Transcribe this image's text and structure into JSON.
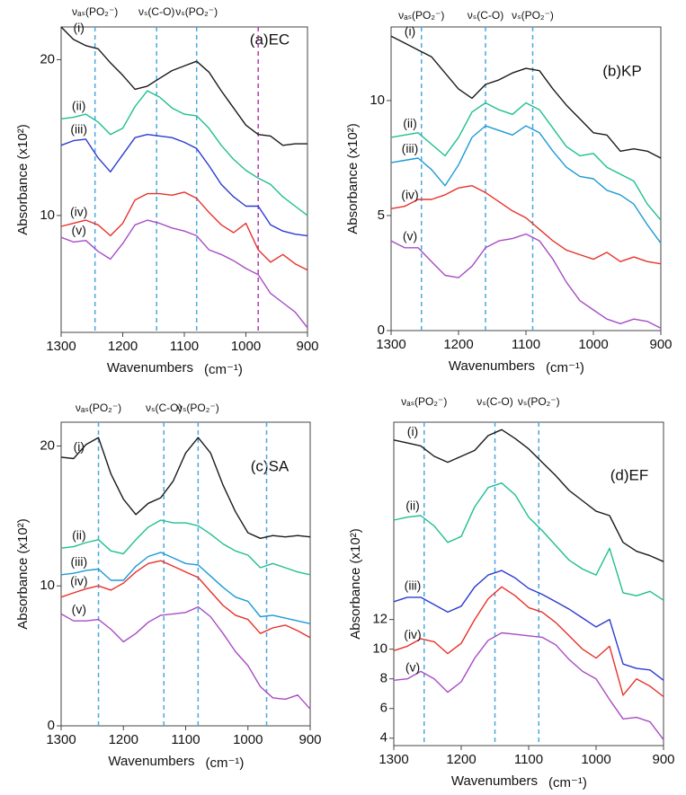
{
  "chart_data": [
    {
      "type": "line",
      "title": "(a)EC",
      "xlabel": "Wavenumbers",
      "xlabel_unit": "(cm⁻¹)",
      "ylabel": "Absorbance (x10²)",
      "xlim": [
        1300,
        900
      ],
      "xticks": [
        1300,
        1200,
        1100,
        1000,
        900
      ],
      "ylim": [
        2.5,
        22.1
      ],
      "yticks": [
        10,
        20
      ],
      "vlines": [
        {
          "x": 1245,
          "color": "#4aa8e0",
          "label": "νₐₛ(PO₂⁻)"
        },
        {
          "x": 1145,
          "color": "#4aa8e0",
          "label": "νₛ(C-O)"
        },
        {
          "x": 1080,
          "color": "#4aa8e0",
          "label": "νₛ(PO₂⁻)"
        },
        {
          "x": 980,
          "color": "#b03ab0"
        }
      ],
      "x": [
        1300,
        1280,
        1260,
        1240,
        1220,
        1200,
        1180,
        1160,
        1140,
        1120,
        1100,
        1080,
        1060,
        1040,
        1020,
        1000,
        980,
        960,
        940,
        920,
        900
      ],
      "series": [
        {
          "name": "(i)",
          "color": "#1a1a1a",
          "values": [
            22.1,
            21.3,
            20.9,
            20.7,
            19.8,
            19.0,
            18.1,
            18.3,
            18.8,
            19.3,
            19.6,
            19.9,
            19.2,
            18.0,
            16.9,
            15.8,
            15.2,
            15.1,
            14.5,
            14.6,
            14.6
          ]
        },
        {
          "name": "(ii)",
          "color": "#1fbf8f",
          "values": [
            16.2,
            16.3,
            16.5,
            16.0,
            15.2,
            15.6,
            17.0,
            18.0,
            17.6,
            16.9,
            16.5,
            16.4,
            15.6,
            14.5,
            13.6,
            12.9,
            12.4,
            12.0,
            11.2,
            10.6,
            10.0
          ]
        },
        {
          "name": "(iii)",
          "color": "#2b3bd0",
          "values": [
            14.5,
            14.8,
            14.9,
            13.7,
            12.8,
            13.9,
            15.0,
            15.2,
            15.1,
            15.0,
            14.7,
            14.3,
            13.2,
            12.0,
            11.2,
            10.6,
            10.6,
            9.4,
            9.0,
            8.8,
            8.7
          ]
        },
        {
          "name": "(iv)",
          "color": "#e8312a",
          "values": [
            9.3,
            9.5,
            9.7,
            9.4,
            8.7,
            9.5,
            11.0,
            11.4,
            11.4,
            11.3,
            11.5,
            11.1,
            10.2,
            9.4,
            8.9,
            9.5,
            7.8,
            7.0,
            7.5,
            6.9,
            6.5
          ]
        },
        {
          "name": "(v)",
          "color": "#a64dc4",
          "values": [
            8.6,
            8.3,
            8.4,
            7.7,
            7.2,
            8.2,
            9.4,
            9.7,
            9.5,
            9.2,
            9.0,
            8.7,
            7.8,
            7.5,
            7.1,
            6.6,
            6.2,
            5.0,
            4.4,
            3.8,
            2.8
          ]
        }
      ]
    },
    {
      "type": "line",
      "title": "(b)KP",
      "xlabel": "Wavenumbers",
      "xlabel_unit": "(cm⁻¹)",
      "ylabel": "Absorbance (x10²)",
      "xlim": [
        1300,
        900
      ],
      "xticks": [
        1300,
        1200,
        1100,
        1000,
        900
      ],
      "ylim": [
        0,
        13.2
      ],
      "yticks": [
        0,
        5,
        10
      ],
      "vlines": [
        {
          "x": 1255,
          "color": "#4aa8e0",
          "label": "νₐₛ(PO₂⁻)"
        },
        {
          "x": 1160,
          "color": "#4aa8e0",
          "label": "νₛ(C-O)"
        },
        {
          "x": 1090,
          "color": "#4aa8e0",
          "label": "νₛ(PO₂⁻)"
        }
      ],
      "x": [
        1300,
        1280,
        1260,
        1240,
        1220,
        1200,
        1180,
        1160,
        1140,
        1120,
        1100,
        1080,
        1060,
        1040,
        1020,
        1000,
        980,
        960,
        940,
        920,
        900
      ],
      "series": [
        {
          "name": "(i)",
          "color": "#1a1a1a",
          "values": [
            12.8,
            12.5,
            12.2,
            11.9,
            11.2,
            10.5,
            10.1,
            10.7,
            10.9,
            11.2,
            11.4,
            11.3,
            10.5,
            9.8,
            9.2,
            8.6,
            8.5,
            7.8,
            7.9,
            7.8,
            7.5
          ]
        },
        {
          "name": "(ii)",
          "color": "#1fbf8f",
          "values": [
            8.4,
            8.5,
            8.6,
            8.1,
            7.6,
            8.4,
            9.5,
            9.9,
            9.6,
            9.4,
            9.9,
            9.6,
            8.8,
            8.0,
            7.6,
            7.7,
            7.1,
            6.8,
            6.5,
            5.5,
            4.8
          ]
        },
        {
          "name": "(iii)",
          "color": "#1c9ad6",
          "values": [
            7.3,
            7.4,
            7.5,
            7.0,
            6.3,
            7.2,
            8.4,
            8.9,
            8.7,
            8.5,
            8.9,
            8.6,
            7.8,
            7.1,
            6.7,
            6.6,
            6.1,
            5.9,
            5.5,
            4.6,
            3.8
          ]
        },
        {
          "name": "(iv)",
          "color": "#e8312a",
          "values": [
            5.3,
            5.4,
            5.7,
            5.7,
            5.9,
            6.2,
            6.3,
            6.0,
            5.6,
            5.2,
            4.9,
            4.4,
            3.9,
            3.5,
            3.3,
            3.1,
            3.4,
            3.0,
            3.2,
            3.0,
            2.9
          ]
        },
        {
          "name": "(v)",
          "color": "#a64dc4",
          "values": [
            3.9,
            3.6,
            3.6,
            3.0,
            2.4,
            2.3,
            2.8,
            3.6,
            3.9,
            4.0,
            4.2,
            3.9,
            3.1,
            2.1,
            1.3,
            0.9,
            0.5,
            0.3,
            0.5,
            0.4,
            0.1
          ]
        }
      ]
    },
    {
      "type": "line",
      "title": "(c)SA",
      "xlabel": "Wavenumbers",
      "xlabel_unit": "(cm⁻¹)",
      "ylabel": "Absorbance (x10²)",
      "xlim": [
        1300,
        900
      ],
      "xticks": [
        1300,
        1200,
        1100,
        1000,
        900
      ],
      "ylim": [
        0,
        21.7
      ],
      "yticks": [
        0,
        10,
        20
      ],
      "vlines": [
        {
          "x": 1240,
          "color": "#4aa8e0",
          "label": "νₐₛ(PO₂⁻)"
        },
        {
          "x": 1135,
          "color": "#4aa8e0",
          "label": "νₛ(C-O)"
        },
        {
          "x": 1080,
          "color": "#4aa8e0",
          "label": "νₛ(PO₂⁻)"
        },
        {
          "x": 970,
          "color": "#4aa8e0"
        }
      ],
      "x": [
        1300,
        1280,
        1260,
        1240,
        1220,
        1200,
        1180,
        1160,
        1140,
        1120,
        1100,
        1080,
        1060,
        1040,
        1020,
        1000,
        980,
        960,
        940,
        920,
        900
      ],
      "series": [
        {
          "name": "(i)",
          "color": "#1a1a1a",
          "values": [
            19.2,
            19.1,
            20.1,
            20.6,
            18.0,
            16.2,
            15.1,
            15.9,
            16.3,
            17.5,
            19.5,
            20.6,
            19.5,
            17.2,
            15.3,
            13.8,
            13.4,
            13.6,
            13.5,
            13.6,
            13.5
          ]
        },
        {
          "name": "(ii)",
          "color": "#1fbf8f",
          "values": [
            12.7,
            12.8,
            13.1,
            13.3,
            12.5,
            12.3,
            13.3,
            14.2,
            14.7,
            14.5,
            14.5,
            14.3,
            13.7,
            13.0,
            12.5,
            12.2,
            11.3,
            11.6,
            11.3,
            11.0,
            10.8
          ]
        },
        {
          "name": "(iii)",
          "color": "#1c9ad6",
          "values": [
            10.8,
            10.9,
            11.1,
            11.2,
            10.4,
            10.4,
            11.4,
            12.1,
            12.4,
            12.0,
            11.6,
            11.5,
            10.7,
            9.9,
            9.2,
            8.9,
            7.8,
            7.9,
            7.7,
            7.5,
            7.3
          ]
        },
        {
          "name": "(iv)",
          "color": "#e8312a",
          "values": [
            9.2,
            9.5,
            9.8,
            10.0,
            9.7,
            10.2,
            11.0,
            11.6,
            11.8,
            11.4,
            11.0,
            10.6,
            9.6,
            8.6,
            7.9,
            7.6,
            6.6,
            7.0,
            7.2,
            6.8,
            6.3
          ]
        },
        {
          "name": "(v)",
          "color": "#a64dc4",
          "values": [
            8.0,
            7.5,
            7.5,
            7.6,
            6.9,
            6.0,
            6.6,
            7.4,
            7.9,
            8.0,
            8.1,
            8.5,
            7.8,
            6.6,
            5.3,
            4.3,
            2.8,
            2.0,
            1.9,
            2.2,
            1.2
          ]
        }
      ]
    },
    {
      "type": "line",
      "title": "(d)EF",
      "xlabel": "Wavenumbers",
      "xlabel_unit": "(cm⁻¹)",
      "ylabel": "Absorbance (x10²)",
      "xlim": [
        1300,
        900
      ],
      "xticks": [
        1300,
        1200,
        1100,
        1000,
        900
      ],
      "ylim": [
        3.5,
        25.3
      ],
      "yticks": [
        4,
        6,
        8,
        10,
        12
      ],
      "vlines": [
        {
          "x": 1255,
          "color": "#4aa8e0",
          "label": "νₐₛ(PO₂⁻)"
        },
        {
          "x": 1150,
          "color": "#4aa8e0",
          "label": "νₛ(C-O)"
        },
        {
          "x": 1085,
          "color": "#4aa8e0",
          "label": "νₛ(PO₂⁻)"
        }
      ],
      "x": [
        1300,
        1280,
        1260,
        1240,
        1220,
        1200,
        1180,
        1160,
        1140,
        1120,
        1100,
        1080,
        1060,
        1040,
        1020,
        1000,
        980,
        960,
        940,
        920,
        900
      ],
      "series": [
        {
          "name": "(i)",
          "color": "#1a1a1a",
          "values": [
            24.1,
            23.9,
            23.7,
            23.0,
            22.6,
            23.0,
            23.4,
            24.4,
            24.8,
            24.2,
            23.5,
            22.6,
            21.7,
            20.7,
            20.0,
            19.3,
            19.0,
            17.2,
            16.6,
            16.3,
            15.9
          ]
        },
        {
          "name": "(ii)",
          "color": "#1fbf8f",
          "values": [
            18.7,
            18.9,
            19.0,
            18.3,
            17.2,
            17.6,
            19.6,
            20.9,
            21.2,
            20.4,
            18.9,
            18.0,
            17.0,
            16.0,
            15.4,
            15.0,
            16.8,
            13.8,
            13.6,
            13.9,
            13.3
          ]
        },
        {
          "name": "(iii)",
          "color": "#2b3bd0",
          "values": [
            13.2,
            13.5,
            13.5,
            13.0,
            12.5,
            12.9,
            14.2,
            15.0,
            15.3,
            14.8,
            14.1,
            13.7,
            13.2,
            12.7,
            12.1,
            11.5,
            12.0,
            9.0,
            8.7,
            8.6,
            7.9
          ]
        },
        {
          "name": "(iv)",
          "color": "#e8312a",
          "values": [
            9.9,
            10.2,
            10.7,
            10.5,
            9.7,
            10.4,
            12.0,
            13.4,
            14.2,
            13.6,
            12.8,
            12.5,
            11.8,
            10.9,
            10.0,
            9.4,
            10.2,
            6.9,
            8.0,
            7.5,
            6.8
          ]
        },
        {
          "name": "(v)",
          "color": "#a64dc4",
          "values": [
            7.9,
            8.0,
            8.5,
            8.0,
            7.1,
            7.8,
            9.4,
            10.6,
            11.1,
            11.0,
            10.9,
            10.8,
            10.3,
            9.3,
            8.5,
            8.0,
            6.6,
            5.3,
            5.4,
            5.1,
            3.9
          ]
        }
      ]
    }
  ]
}
